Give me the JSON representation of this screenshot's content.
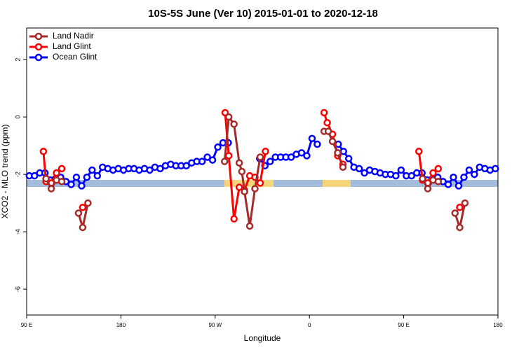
{
  "chart_data": {
    "type": "line",
    "title": "10S-5S June (Ver 10)   2015-01-01 to 2020-12-18",
    "x_label": "Longitude",
    "y_label": "XCO2 - MLO trend (ppm)",
    "xlim": [
      90,
      540
    ],
    "ylim": [
      -6.9,
      3.1
    ],
    "xticks": [
      {
        "value": 90,
        "label": "90 E"
      },
      180,
      {
        "value": 270,
        "label": "90 W"
      },
      {
        "value": 360,
        "label": "0"
      },
      {
        "value": 450,
        "label": "90 E"
      },
      {
        "value": 540,
        "label": "180"
      }
    ],
    "yticks": [
      -6,
      -4,
      -2,
      0,
      2
    ],
    "legend": "top-left",
    "series": [
      {
        "name": "Land Nadir",
        "color": "#a52a2a",
        "x": [
          108.5,
          113.5,
          118.5,
          123.5,
          null,
          139.5,
          143.5,
          148.5,
          null,
          279,
          283,
          288,
          293,
          295.5,
          298,
          303,
          308,
          313,
          null,
          374,
          378,
          382,
          387,
          392,
          null,
          468,
          473,
          478,
          483,
          null,
          499,
          503.5,
          508.5
        ],
        "values": [
          -2.15,
          -2.5,
          -2.2,
          -2.25,
          null,
          -3.35,
          -3.85,
          -3.0,
          null,
          -1.55,
          0,
          -0.25,
          -1.6,
          -1.9,
          -2.6,
          -3.8,
          -2.5,
          -1.4,
          null,
          -0.5,
          -0.5,
          -0.85,
          -1.25,
          -1.75,
          null,
          -2.15,
          -2.5,
          -2.2,
          -2.25,
          null,
          -3.35,
          -3.85,
          -3.0
        ]
      },
      {
        "name": "Land Glint",
        "color": "#ff0000",
        "x": [
          106,
          108.5,
          113.5,
          118.5,
          123.5,
          null,
          143.5,
          null,
          279.5,
          283,
          288,
          293,
          298,
          303,
          308,
          313,
          318,
          null,
          374,
          377,
          382,
          387,
          392,
          null,
          464.5,
          468,
          473,
          478,
          483,
          null,
          503.5
        ],
        "values": [
          -1.2,
          -2.25,
          -2.3,
          -1.95,
          -1.8,
          null,
          -3.15,
          null,
          0.15,
          -1.35,
          -3.55,
          -2.45,
          -2.55,
          -2.05,
          -2.1,
          -2.3,
          -1.2,
          null,
          0.15,
          -0.2,
          -0.6,
          -1.35,
          -1.65,
          null,
          -1.2,
          -2.2,
          -2.3,
          -1.95,
          -1.8,
          null,
          -3.15
        ]
      },
      {
        "name": "Ocean Glint",
        "color": "#0000ff",
        "x": [
          92.5,
          97.5,
          102.5,
          107.5,
          112.5,
          117.5,
          122.5,
          127.5,
          132.5,
          137.5,
          142.5,
          147.5,
          152.5,
          157.5,
          162.5,
          167.5,
          172.5,
          177.5,
          182.5,
          187.5,
          192.5,
          197.5,
          202.5,
          207.5,
          212.5,
          217.5,
          222.5,
          227.5,
          232.5,
          237.5,
          242.5,
          247.5,
          252.5,
          257.5,
          262.5,
          267.5,
          272.5,
          277.5,
          282.5,
          287.5,
          292.5,
          297.5,
          302.5,
          307.5,
          312.5,
          317.5,
          322.5,
          327.5,
          332.5,
          337.5,
          342.5,
          347.5,
          352.5,
          357.5,
          362.5,
          367.5,
          372.5,
          377.5,
          382.5,
          387.5,
          392.5,
          397.5,
          402.5,
          407.5,
          412.5,
          417.5,
          422.5,
          427.5,
          432.5,
          437.5,
          442.5,
          447.5,
          452.5,
          457.5,
          462.5,
          467.5,
          472.5,
          477.5,
          482.5,
          487.5,
          492.5,
          497.5,
          502.5,
          507.5,
          512.5,
          517.5,
          522.5,
          527.5,
          532.5,
          537.5
        ],
        "values": [
          -2.05,
          -2.05,
          -1.95,
          -1.95,
          -2.2,
          -2.15,
          -2.1,
          -2.25,
          -2.35,
          -2.1,
          -2.4,
          -2.1,
          -1.85,
          -2.05,
          -1.75,
          -1.8,
          -1.85,
          -1.8,
          -1.85,
          -1.8,
          -1.8,
          -1.85,
          -1.8,
          -1.85,
          -1.75,
          -1.8,
          -1.7,
          -1.65,
          -1.7,
          -1.7,
          -1.7,
          -1.6,
          -1.55,
          -1.55,
          -1.4,
          -1.5,
          -1.05,
          -0.9,
          -0.9,
          null,
          null,
          null,
          null,
          null,
          -1.45,
          -1.7,
          -1.55,
          -1.4,
          -1.4,
          -1.4,
          -1.4,
          -1.3,
          -1.25,
          -1.35,
          -0.75,
          -0.95,
          null,
          null,
          null,
          -0.95,
          -1.2,
          -1.45,
          -1.75,
          -1.8,
          -1.95,
          -1.85,
          -1.9,
          -1.95,
          -2.0,
          -2.0,
          -2.05,
          -1.85,
          -2.05,
          -2.05,
          -1.95,
          -1.95,
          -2.2,
          -2.15,
          -2.1,
          -2.25,
          -2.35,
          -2.1,
          -2.4,
          -2.1,
          -1.85,
          -2.0,
          -1.75,
          -1.8,
          -1.85,
          -1.8
        ]
      }
    ]
  }
}
